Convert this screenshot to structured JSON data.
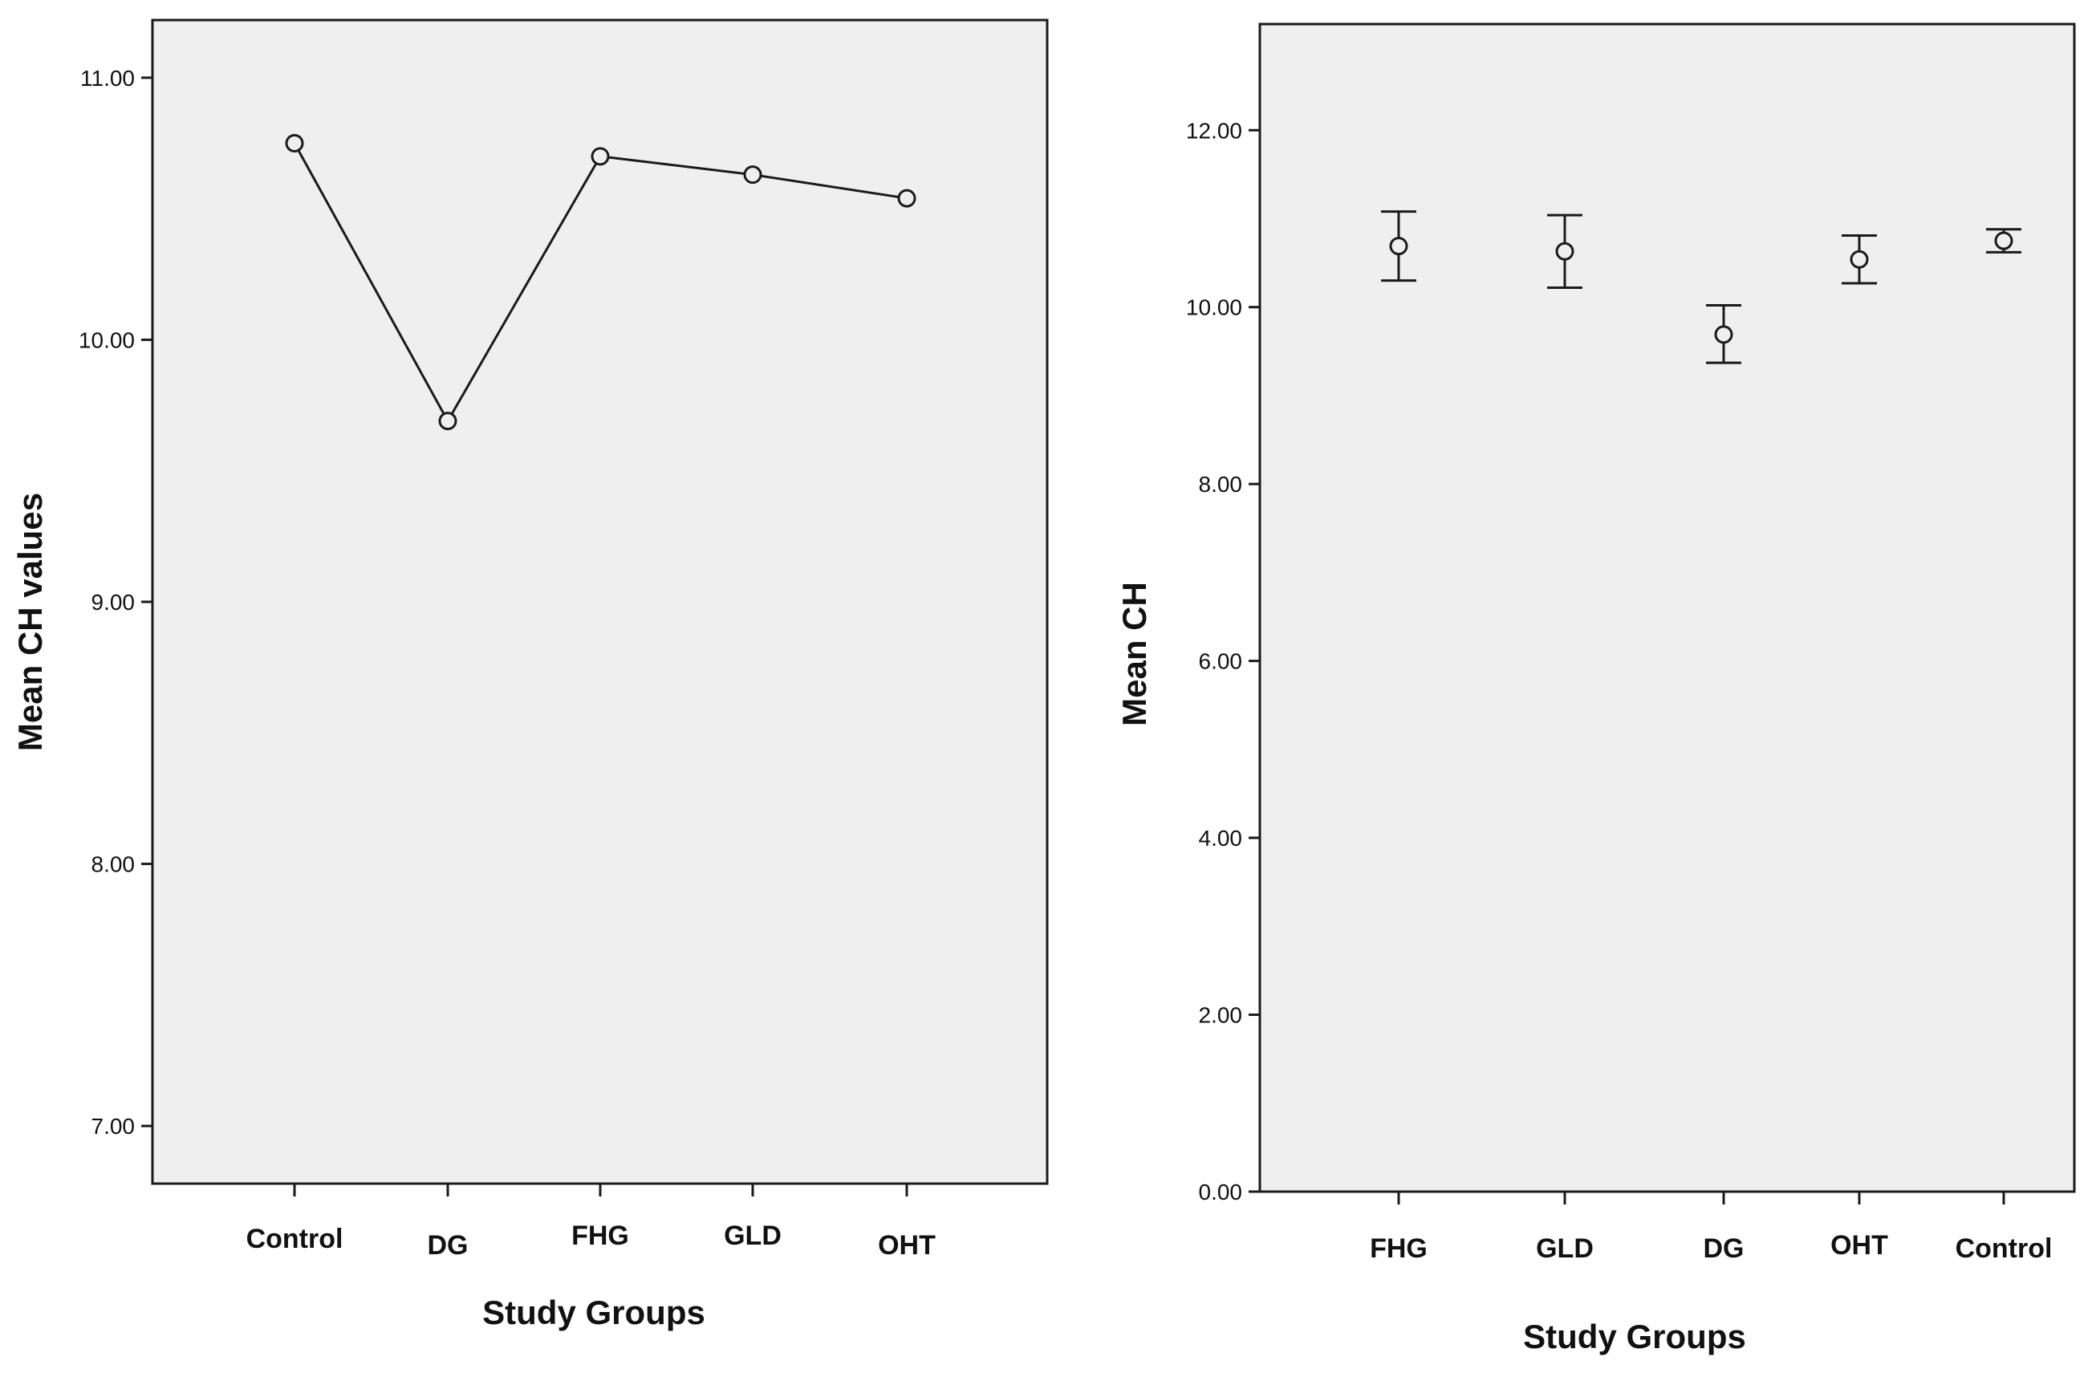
{
  "chart_data": [
    {
      "type": "line",
      "title": "",
      "xlabel": "Study Groups",
      "ylabel": "Mean CH values",
      "categories": [
        "Control",
        "DG",
        "FHG",
        "GLD",
        "OHT"
      ],
      "series": [
        {
          "values": [
            10.75,
            9.69,
            10.7,
            10.63,
            10.54
          ]
        }
      ],
      "ylim": [
        6.78,
        11.22
      ],
      "yticks": [
        "7.00",
        "8.00",
        "9.00",
        "10.00",
        "11.00"
      ],
      "connect_from_index": 0,
      "grid": false,
      "marker": "open-circle",
      "colors": {
        "plot_bg": "#efefef",
        "line": "#1a1a1a",
        "axis": "#1a1a1a"
      }
    },
    {
      "type": "scatter",
      "title": "",
      "xlabel": "Study Groups",
      "ylabel": "Mean CH",
      "categories": [
        "FHG",
        "GLD",
        "DG",
        "OHT",
        "Control"
      ],
      "series": [
        {
          "values": [
            10.69,
            10.63,
            9.69,
            10.54,
            10.75
          ],
          "error_low": [
            10.3,
            10.22,
            9.37,
            10.27,
            10.62
          ],
          "error_high": [
            11.08,
            11.04,
            10.02,
            10.81,
            10.88
          ]
        }
      ],
      "ylim": [
        0,
        13.2
      ],
      "yticks": [
        "0.00",
        "2.00",
        "4.00",
        "6.00",
        "8.00",
        "10.00",
        "12.00"
      ],
      "grid": false,
      "marker": "open-circle-with-error-bars",
      "colors": {
        "plot_bg": "#efefef",
        "line": "#1a1a1a",
        "axis": "#1a1a1a"
      }
    }
  ]
}
